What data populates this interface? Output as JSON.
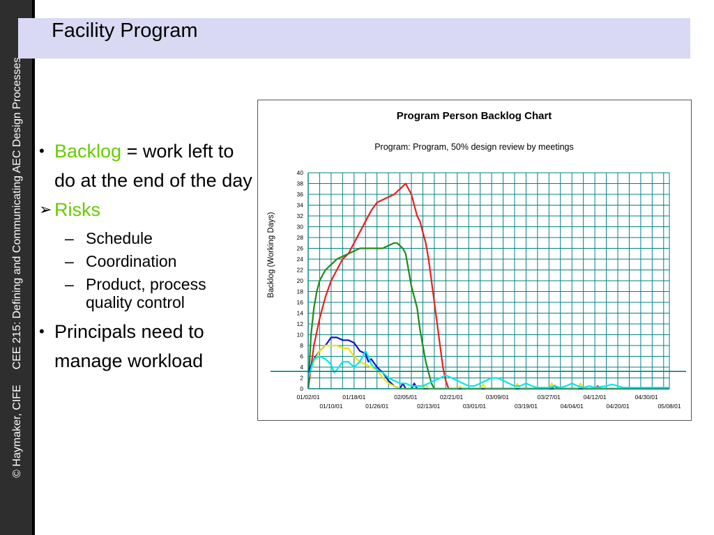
{
  "side_banner": {
    "copyright": "© Haymaker, CIFE",
    "course": "CEE 215: Defining and Communicating AEC Design Processes"
  },
  "slide": {
    "title": "Facility Program"
  },
  "bullets": {
    "item1_term": "Backlog",
    "item1_rest": " = work left to do at the end of the day",
    "item2_label": "Risks",
    "sub1": "Schedule",
    "sub2": "Coordination",
    "sub3": "Product, process quality control",
    "item3": "Principals need to manage workload",
    "marker_round": "•",
    "marker_arrow": "➢",
    "marker_dash": "–"
  },
  "colors": {
    "grid": "#008080",
    "series_red": "#ee1c1c",
    "series_green": "#1a8c1a",
    "series_blue": "#1010cc",
    "series_yellow": "#f0e000",
    "series_cyan": "#00e8e8",
    "highlight": "#66cc00"
  },
  "chart_data": {
    "type": "line",
    "title": "Program Person Backlog Chart",
    "subtitle": "Program: Program, 50% design review by meetings",
    "ylabel": "Backlog (Working Days)",
    "ylim": [
      0,
      40
    ],
    "yticks": [
      0,
      2,
      4,
      6,
      8,
      10,
      12,
      14,
      16,
      18,
      20,
      22,
      24,
      26,
      28,
      30,
      32,
      34,
      36,
      38,
      40
    ],
    "xlim": [
      0,
      126
    ],
    "xticks_top": [
      {
        "x": 0,
        "label": "01/02/01"
      },
      {
        "x": 16,
        "label": "01/18/01"
      },
      {
        "x": 34,
        "label": "02/05/01"
      },
      {
        "x": 50,
        "label": "02/21/01"
      },
      {
        "x": 66,
        "label": "03/09/01"
      },
      {
        "x": 84,
        "label": "03/27/01"
      },
      {
        "x": 100,
        "label": "04/12/01"
      },
      {
        "x": 118,
        "label": "04/30/01"
      }
    ],
    "xticks_bottom": [
      {
        "x": 8,
        "label": "01/10/01"
      },
      {
        "x": 24,
        "label": "01/26/01"
      },
      {
        "x": 42,
        "label": "02/13/01"
      },
      {
        "x": 58,
        "label": "03/01/01"
      },
      {
        "x": 76,
        "label": "03/19/01"
      },
      {
        "x": 92,
        "label": "04/04/01"
      },
      {
        "x": 108,
        "label": "04/20/01"
      },
      {
        "x": 126,
        "label": "05/08/01"
      }
    ],
    "reference_line": 3.2,
    "grid": true,
    "series": [
      {
        "color": "#ee1c1c",
        "values": [
          [
            0,
            0
          ],
          [
            2,
            8
          ],
          [
            4,
            13
          ],
          [
            6,
            17
          ],
          [
            8,
            20
          ],
          [
            10,
            22
          ],
          [
            12,
            24
          ],
          [
            14,
            25
          ],
          [
            16,
            27
          ],
          [
            18,
            29
          ],
          [
            20,
            31
          ],
          [
            22,
            33
          ],
          [
            24,
            34.5
          ],
          [
            26,
            35
          ],
          [
            28,
            35.5
          ],
          [
            30,
            36
          ],
          [
            32,
            37
          ],
          [
            33,
            37.5
          ],
          [
            34,
            38
          ],
          [
            35,
            37
          ],
          [
            36,
            36
          ],
          [
            37,
            34
          ],
          [
            38,
            32
          ],
          [
            39,
            31
          ],
          [
            40,
            29
          ],
          [
            41,
            27
          ],
          [
            42,
            24
          ],
          [
            43,
            20
          ],
          [
            44,
            16
          ],
          [
            45,
            12
          ],
          [
            46,
            8
          ],
          [
            47,
            4
          ],
          [
            48,
            1.5
          ],
          [
            49,
            0
          ],
          [
            50,
            0
          ],
          [
            85,
            0
          ],
          [
            86,
            0.6
          ],
          [
            87,
            0
          ],
          [
            100,
            0
          ],
          [
            101,
            0.5
          ],
          [
            102,
            0
          ],
          [
            126,
            0
          ]
        ]
      },
      {
        "color": "#1a8c1a",
        "values": [
          [
            0,
            0
          ],
          [
            1,
            10
          ],
          [
            2,
            15
          ],
          [
            3,
            18
          ],
          [
            4,
            20
          ],
          [
            6,
            22
          ],
          [
            8,
            23
          ],
          [
            10,
            24
          ],
          [
            12,
            24.5
          ],
          [
            14,
            25
          ],
          [
            16,
            25.5
          ],
          [
            18,
            26
          ],
          [
            20,
            26
          ],
          [
            22,
            26
          ],
          [
            24,
            26
          ],
          [
            26,
            26
          ],
          [
            28,
            26.5
          ],
          [
            30,
            27
          ],
          [
            31,
            27
          ],
          [
            32,
            26.5
          ],
          [
            33,
            26
          ],
          [
            34,
            25
          ],
          [
            35,
            22
          ],
          [
            36,
            19
          ],
          [
            37,
            17
          ],
          [
            38,
            15
          ],
          [
            39,
            11
          ],
          [
            40,
            8
          ],
          [
            41,
            5
          ],
          [
            42,
            3
          ],
          [
            43,
            1
          ],
          [
            44,
            0
          ],
          [
            126,
            0
          ]
        ]
      },
      {
        "color": "#1010cc",
        "values": [
          [
            0,
            3
          ],
          [
            2,
            5.5
          ],
          [
            4,
            7
          ],
          [
            6,
            8
          ],
          [
            8,
            9.5
          ],
          [
            10,
            9.5
          ],
          [
            12,
            9
          ],
          [
            14,
            9
          ],
          [
            16,
            8.5
          ],
          [
            18,
            7
          ],
          [
            20,
            6.5
          ],
          [
            21,
            5
          ],
          [
            22,
            5.5
          ],
          [
            24,
            4
          ],
          [
            26,
            3
          ],
          [
            28,
            1.5
          ],
          [
            30,
            0.5
          ],
          [
            32,
            0
          ],
          [
            33,
            1
          ],
          [
            34,
            0
          ],
          [
            36,
            0
          ],
          [
            37,
            1
          ],
          [
            38,
            0
          ],
          [
            126,
            0
          ]
        ]
      },
      {
        "color": "#f0e000",
        "values": [
          [
            0,
            2
          ],
          [
            2,
            5
          ],
          [
            4,
            7
          ],
          [
            6,
            8
          ],
          [
            8,
            8
          ],
          [
            10,
            8
          ],
          [
            12,
            7.5
          ],
          [
            14,
            7.5
          ],
          [
            16,
            6
          ],
          [
            18,
            5
          ],
          [
            20,
            4.5
          ],
          [
            22,
            4
          ],
          [
            24,
            3.5
          ],
          [
            26,
            2
          ],
          [
            28,
            1
          ],
          [
            30,
            0.5
          ],
          [
            32,
            0
          ],
          [
            40,
            0
          ],
          [
            41,
            0.8
          ],
          [
            42,
            0
          ],
          [
            52,
            0
          ],
          [
            53,
            0.4
          ],
          [
            54,
            0
          ],
          [
            60,
            0
          ],
          [
            61,
            0.8
          ],
          [
            62,
            0
          ],
          [
            72,
            0
          ],
          [
            73,
            0.9
          ],
          [
            74,
            0
          ],
          [
            84,
            0
          ],
          [
            85,
            1
          ],
          [
            86,
            0
          ],
          [
            94,
            0
          ],
          [
            95,
            1
          ],
          [
            96,
            0
          ],
          [
            126,
            0
          ]
        ]
      },
      {
        "color": "#00e8e8",
        "values": [
          [
            0,
            2
          ],
          [
            2,
            5.5
          ],
          [
            4,
            6
          ],
          [
            6,
            5.5
          ],
          [
            8,
            4.5
          ],
          [
            9,
            3
          ],
          [
            10,
            3.5
          ],
          [
            12,
            5
          ],
          [
            14,
            5
          ],
          [
            16,
            4
          ],
          [
            18,
            5
          ],
          [
            20,
            7
          ],
          [
            21,
            6
          ],
          [
            22,
            4.5
          ],
          [
            24,
            3.5
          ],
          [
            26,
            3
          ],
          [
            28,
            2
          ],
          [
            30,
            1.5
          ],
          [
            32,
            1
          ],
          [
            34,
            1
          ],
          [
            36,
            0.5
          ],
          [
            38,
            0.5
          ],
          [
            40,
            0.5
          ],
          [
            42,
            1
          ],
          [
            44,
            1.5
          ],
          [
            46,
            2
          ],
          [
            48,
            2.5
          ],
          [
            50,
            2
          ],
          [
            52,
            1.5
          ],
          [
            54,
            1
          ],
          [
            56,
            0.5
          ],
          [
            58,
            0.5
          ],
          [
            60,
            1
          ],
          [
            62,
            1.5
          ],
          [
            64,
            2
          ],
          [
            66,
            2
          ],
          [
            68,
            1.5
          ],
          [
            70,
            1
          ],
          [
            72,
            0.5
          ],
          [
            74,
            0.5
          ],
          [
            76,
            1
          ],
          [
            78,
            0.5
          ],
          [
            80,
            0.2
          ],
          [
            84,
            0.2
          ],
          [
            86,
            0.5
          ],
          [
            88,
            0.2
          ],
          [
            90,
            0.5
          ],
          [
            92,
            1
          ],
          [
            94,
            0.5
          ],
          [
            96,
            0.2
          ],
          [
            98,
            0.5
          ],
          [
            100,
            0.2
          ],
          [
            104,
            0.5
          ],
          [
            106,
            0.8
          ],
          [
            108,
            0.5
          ],
          [
            110,
            0.2
          ],
          [
            126,
            0.2
          ]
        ]
      }
    ]
  }
}
